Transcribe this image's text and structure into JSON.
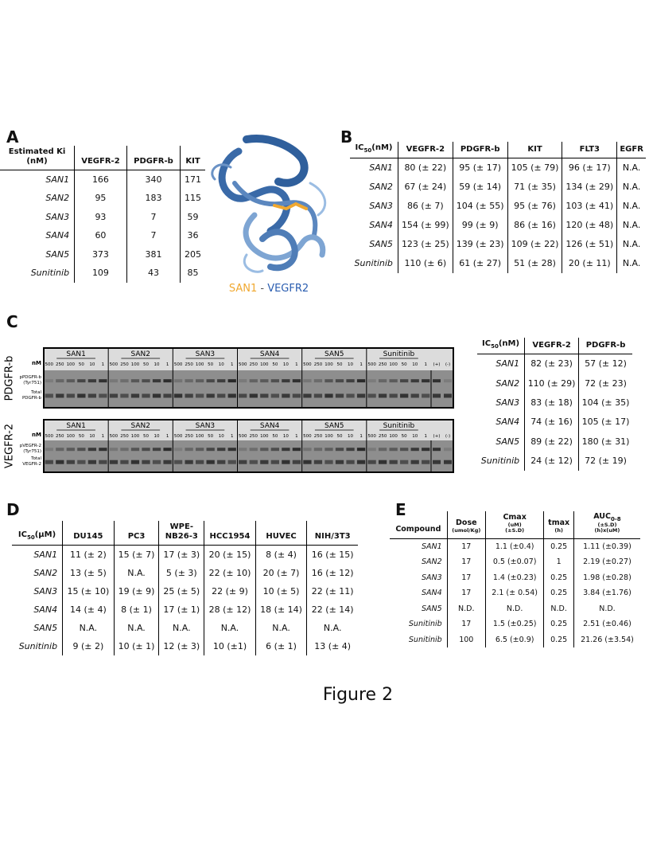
{
  "figure_caption": "Figure 2",
  "panel_a": {
    "label": "A",
    "header": [
      [
        "Estimated Ki",
        "(nM)"
      ],
      [
        "VEGFR-2"
      ],
      [
        "PDGFR-b"
      ],
      [
        "KIT"
      ]
    ],
    "rows": [
      [
        "SAN1",
        "166",
        "340",
        "171"
      ],
      [
        "SAN2",
        "95",
        "183",
        "115"
      ],
      [
        "SAN3",
        "93",
        "7",
        "59"
      ],
      [
        "SAN4",
        "60",
        "7",
        "36"
      ],
      [
        "SAN5",
        "373",
        "381",
        "205"
      ],
      [
        "Sunitinib",
        "109",
        "43",
        "85"
      ]
    ]
  },
  "structure_caption": {
    "ligand": "SAN1",
    "separator": "-",
    "protein": "VEGFR2"
  },
  "panel_b": {
    "label": "B",
    "header": [
      [
        [
          "IC",
          "50",
          "(nM)"
        ]
      ],
      [
        "VEGFR-2"
      ],
      [
        "PDGFR-b"
      ],
      [
        "KIT"
      ],
      [
        "FLT3"
      ],
      [
        "EGFR"
      ]
    ],
    "rows": [
      [
        "SAN1",
        "80 (± 22)",
        "95 (± 17)",
        "105 (± 79)",
        "96 (± 17)",
        "N.A."
      ],
      [
        "SAN2",
        "67 (± 24)",
        "59 (± 14)",
        "71 (± 35)",
        "134 (± 29)",
        "N.A."
      ],
      [
        "SAN3",
        "86 (± 7)",
        "104 (± 55)",
        "95 (± 76)",
        "103 (± 41)",
        "N.A."
      ],
      [
        "SAN4",
        "154 (± 99)",
        "99 (± 9)",
        "86 (± 16)",
        "120 (± 48)",
        "N.A."
      ],
      [
        "SAN5",
        "123 (± 25)",
        "139 (± 23)",
        "109 (± 22)",
        "126 (± 51)",
        "N.A."
      ],
      [
        "Sunitinib",
        "110 (± 6)",
        "61 (± 27)",
        "51 (± 28)",
        "20 (± 11)",
        "N.A."
      ]
    ]
  },
  "panel_c": {
    "label": "C",
    "blots": [
      {
        "target": "PDGFR-b",
        "unit": "nM",
        "groups": [
          "SAN1",
          "SAN2",
          "SAN3",
          "SAN4",
          "SAN5",
          "Sunitinib"
        ],
        "doses": [
          "500",
          "250",
          "100",
          "50",
          "10",
          "1"
        ],
        "controls": [
          "(+)",
          "(-)"
        ],
        "rows": [
          [
            "pPDGFR-b",
            "(Tyr751)"
          ],
          [
            "Total",
            "PDGFR-b"
          ]
        ]
      },
      {
        "target": "VEGFR-2",
        "unit": "nM",
        "groups": [
          "SAN1",
          "SAN2",
          "SAN3",
          "SAN4",
          "SAN5",
          "Sunitinib"
        ],
        "doses": [
          "500",
          "250",
          "100",
          "50",
          "10",
          "1"
        ],
        "controls": [
          "(+)",
          "(-)"
        ],
        "rows": [
          [
            "pVEGFR-2",
            "(Tyr751)"
          ],
          [
            "Total",
            "VEGFR-2"
          ]
        ]
      }
    ],
    "table": {
      "header": [
        [
          [
            "IC",
            "50",
            "(nM)"
          ]
        ],
        [
          "VEGFR-2"
        ],
        [
          "PDGFR-b"
        ]
      ],
      "rows": [
        [
          "SAN1",
          "82 (± 23)",
          "57 (± 12)"
        ],
        [
          "SAN2",
          "110 (± 29)",
          "72 (± 23)"
        ],
        [
          "SAN3",
          "83 (± 18)",
          "104 (± 35)"
        ],
        [
          "SAN4",
          "74 (± 16)",
          "105 (± 17)"
        ],
        [
          "SAN5",
          "89 (± 22)",
          "180 (± 31)"
        ],
        [
          "Sunitinib",
          "24 (± 12)",
          "72 (± 19)"
        ]
      ]
    }
  },
  "panel_d": {
    "label": "D",
    "header": [
      [
        [
          "IC",
          "50",
          "(μM)"
        ]
      ],
      [
        "DU145"
      ],
      [
        "PC3"
      ],
      [
        "WPE-",
        "NB26-3"
      ],
      [
        "HCC1954"
      ],
      [
        "HUVEC"
      ],
      [
        "NIH/3T3"
      ]
    ],
    "rows": [
      [
        "SAN1",
        "11 (± 2)",
        "15 (± 7)",
        "17 (± 3)",
        "20 (± 15)",
        "8 (± 4)",
        "16 (± 15)"
      ],
      [
        "SAN2",
        "13 (± 5)",
        "N.A.",
        "5 (± 3)",
        "22 (± 10)",
        "20 (± 7)",
        "16 (± 12)"
      ],
      [
        "SAN3",
        "15 (± 10)",
        "19 (± 9)",
        "25 (± 5)",
        "22 (± 9)",
        "10 (± 5)",
        "22 (± 11)"
      ],
      [
        "SAN4",
        "14 (± 4)",
        "8 (± 1)",
        "17 (± 1)",
        "28 (± 12)",
        "18 (± 14)",
        "22 (± 14)"
      ],
      [
        "SAN5",
        "N.A.",
        "N.A.",
        "N.A.",
        "N.A.",
        "N.A.",
        "N.A."
      ],
      [
        "Sunitinib",
        "9 (± 2)",
        "10 (± 1)",
        "12 (± 3)",
        "10 (±1)",
        "6 (± 1)",
        "13 (± 4)"
      ]
    ]
  },
  "panel_e": {
    "label": "E",
    "header": [
      [
        "Compound"
      ],
      [
        "Dose",
        "(umol/Kg)"
      ],
      [
        "Cmax",
        "(uM)",
        "(±S.D)"
      ],
      [
        "tmax",
        "(h)"
      ],
      [
        [
          "AUC",
          "0-8"
        ],
        "(±S.D)",
        "(h)x(uM)"
      ]
    ],
    "rows": [
      [
        "SAN1",
        "17",
        "1.1 (±0.4)",
        "0.25",
        "1.11 (±0.39)"
      ],
      [
        "SAN2",
        "17",
        "0.5 (±0.07)",
        "1",
        "2.19 (±0.27)"
      ],
      [
        "SAN3",
        "17",
        "1.4 (±0.23)",
        "0.25",
        "1.98 (±0.28)"
      ],
      [
        "SAN4",
        "17",
        "2.1 (± 0.54)",
        "0.25",
        "3.84 (±1.76)"
      ],
      [
        "SAN5",
        "N.D.",
        "N.D.",
        "N.D.",
        "N.D."
      ],
      [
        "Sunitinib",
        "17",
        "1.5 (±0.25)",
        "0.25",
        "2.51 (±0.46)"
      ],
      [
        "Sunitinib",
        "100",
        "6.5 (±0.9)",
        "0.25",
        "21.26 (±3.54)"
      ]
    ]
  }
}
